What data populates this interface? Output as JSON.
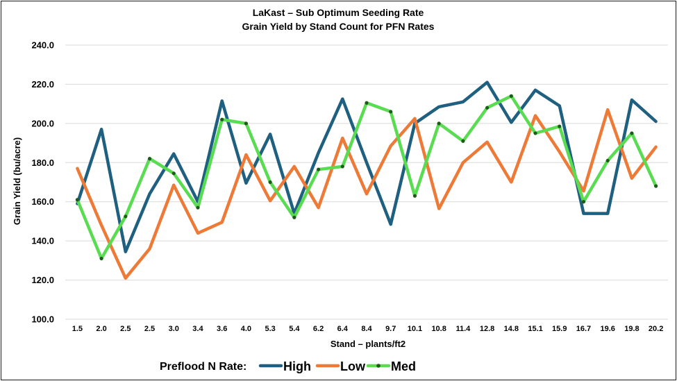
{
  "chart_data": {
    "type": "line",
    "title": "LaKast – Sub Optimum Seeding Rate",
    "subtitle": "Grain Yield by Stand Count for PFN Rates",
    "xlabel": "Stand – plants/ft2",
    "ylabel": "Grain Yield (bu/acre)",
    "ylim": [
      100,
      240
    ],
    "yticks": [
      "100.0",
      "120.0",
      "140.0",
      "160.0",
      "180.0",
      "200.0",
      "220.0",
      "240.0"
    ],
    "grid": true,
    "legend_position": "bottom",
    "legend_title": "Preflood N Rate:",
    "categories": [
      "1.5",
      "2.0",
      "2.5",
      "2.5",
      "3.0",
      "3.4",
      "3.6",
      "4.0",
      "5.3",
      "5.4",
      "6.2",
      "6.4",
      "8.4",
      "9.7",
      "10.1",
      "10.8",
      "11.4",
      "12.8",
      "14.8",
      "15.1",
      "15.9",
      "16.7",
      "19.6",
      "19.8",
      "20.2"
    ],
    "series": [
      {
        "name": "High",
        "color": "#1f5f80",
        "marker": "none",
        "values": [
          159,
          197,
          134.5,
          164,
          184.5,
          160,
          211.5,
          169.5,
          194.5,
          154,
          185,
          212.5,
          180,
          148.5,
          200,
          208.5,
          211,
          221,
          200.5,
          217,
          209,
          154,
          154,
          212,
          201
        ]
      },
      {
        "name": "Low",
        "color": "#ee7a38",
        "marker": "none",
        "values": [
          177,
          148,
          121,
          136,
          168.5,
          144,
          149.5,
          184,
          160.5,
          178,
          157,
          192.5,
          164,
          188.5,
          202.5,
          156.5,
          180,
          190.5,
          170,
          204,
          185.5,
          165.5,
          207,
          172,
          188
        ]
      },
      {
        "name": "Med",
        "color": "#5adc52",
        "marker": "dot",
        "marker_color": "#1e5a1a",
        "values": [
          161,
          131,
          152.5,
          182,
          174.5,
          157,
          202,
          200,
          170,
          152,
          176.5,
          178,
          210.5,
          206,
          163,
          200,
          191,
          208,
          214,
          195,
          198.5,
          160,
          181,
          195,
          168
        ]
      }
    ]
  }
}
